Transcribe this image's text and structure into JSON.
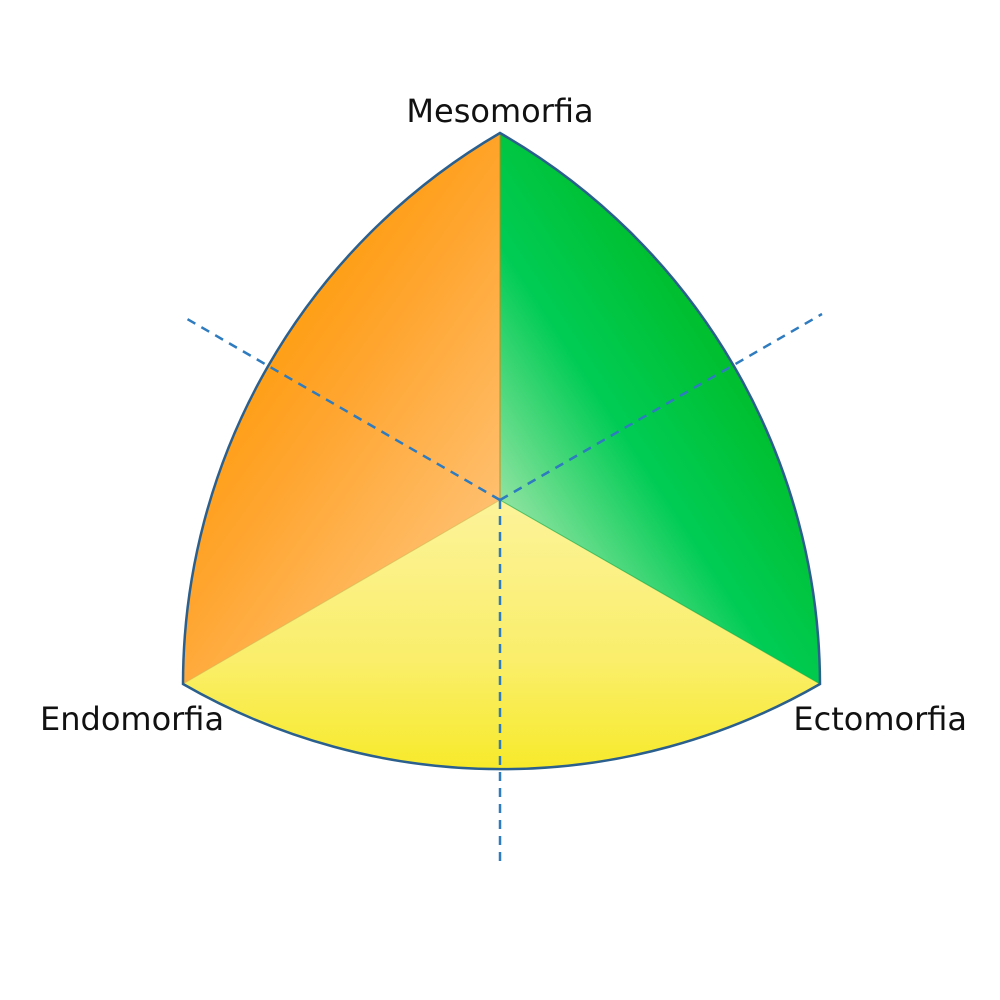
{
  "diagram": {
    "vertices": {
      "top": "Mesomorfia",
      "left": "Endomorfia",
      "right": "Ectomorfia"
    },
    "sectors": [
      {
        "name": "endomorfia-sector",
        "color": "#ff9900"
      },
      {
        "name": "mesomorfia-sector",
        "color": "#00bb22"
      },
      {
        "name": "ectomorfia-sector",
        "color": "#f7ea2a"
      }
    ],
    "axis_color": "#2e7bbf",
    "outline_color": "#2a5f8e"
  }
}
